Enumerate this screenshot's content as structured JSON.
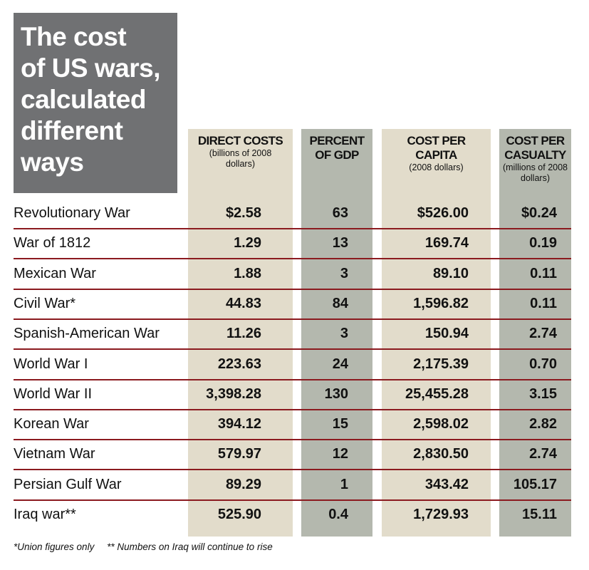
{
  "title_lines": [
    "The cost",
    "of US wars,",
    "calculated",
    "different",
    "ways"
  ],
  "colors": {
    "title_bg": "#707173",
    "col_light": "#e2dccb",
    "col_dark": "#b4b8ae",
    "rule": "#8b1a1f"
  },
  "chart_data": {
    "type": "table",
    "title": "The cost of US wars, calculated different ways",
    "columns": [
      {
        "main": "DIRECT COSTS",
        "sub": "(billions of 2008 dollars)"
      },
      {
        "main": "PERCENT OF GDP",
        "sub": ""
      },
      {
        "main": "COST PER CAPITA",
        "sub": "(2008 dollars)"
      },
      {
        "main": "COST PER CASUALTY",
        "sub": "(millions of 2008 dollars)"
      }
    ],
    "rows": [
      {
        "name": "Revolutionary War",
        "values": [
          "$2.58",
          "63",
          "$526.00",
          "$0.24"
        ]
      },
      {
        "name": "War of 1812",
        "values": [
          "1.29",
          "13",
          "169.74",
          "0.19"
        ]
      },
      {
        "name": "Mexican War",
        "values": [
          "1.88",
          "3",
          "89.10",
          "0.11"
        ]
      },
      {
        "name": "Civil War*",
        "values": [
          "44.83",
          "84",
          "1,596.82",
          "0.11"
        ]
      },
      {
        "name": "Spanish-American War",
        "values": [
          "11.26",
          "3",
          "150.94",
          "2.74"
        ]
      },
      {
        "name": "World War I",
        "values": [
          "223.63",
          "24",
          "2,175.39",
          "0.70"
        ]
      },
      {
        "name": "World War II",
        "values": [
          "3,398.28",
          "130",
          "25,455.28",
          "3.15"
        ]
      },
      {
        "name": "Korean War",
        "values": [
          "394.12",
          "15",
          "2,598.02",
          "2.82"
        ]
      },
      {
        "name": "Vietnam War",
        "values": [
          "579.97",
          "12",
          "2,830.50",
          "2.74"
        ]
      },
      {
        "name": "Persian Gulf War",
        "values": [
          "89.29",
          "1",
          "343.42",
          "105.17"
        ]
      },
      {
        "name": "Iraq war**",
        "values": [
          "525.90",
          "0.4",
          "1,729.93",
          "15.11"
        ]
      }
    ],
    "footnotes": [
      "*Union figures only",
      "** Numbers on Iraq will continue to rise"
    ]
  }
}
